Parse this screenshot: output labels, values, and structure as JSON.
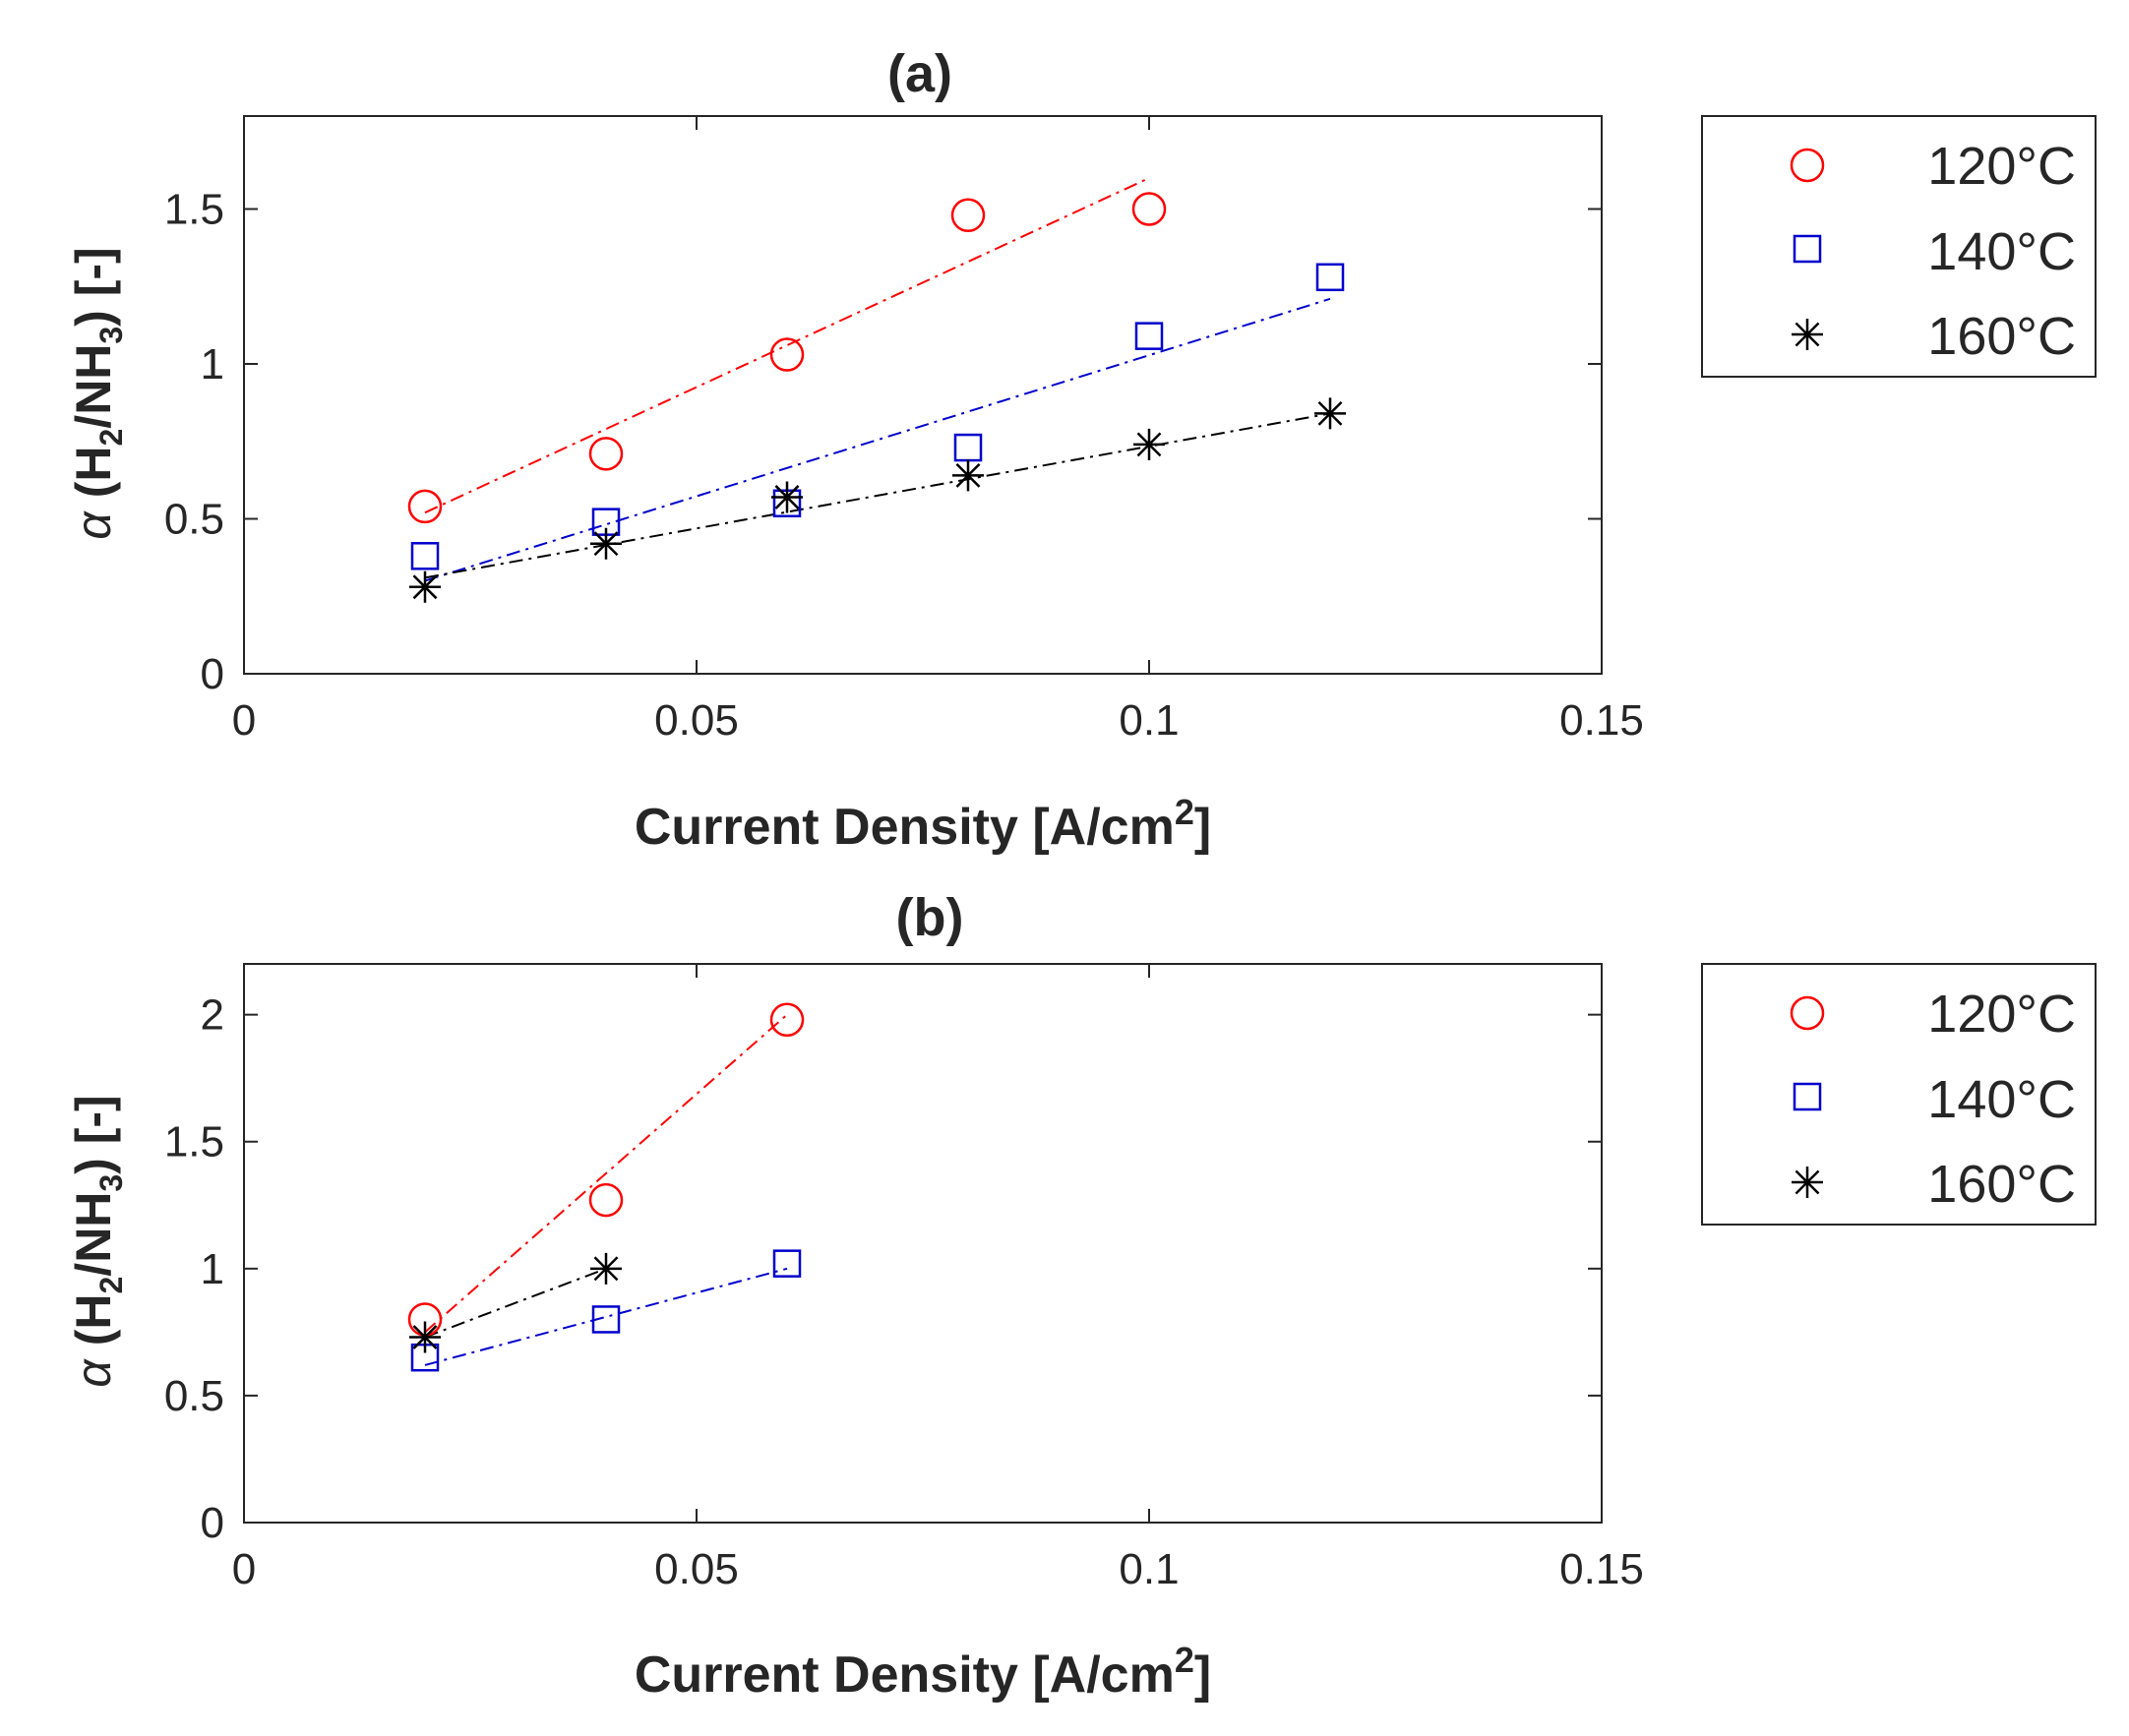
{
  "figure": {
    "colors": {
      "c120": "#ff0000",
      "c140": "#0000cc",
      "c160": "#000000",
      "axis": "#262626"
    }
  },
  "chart_data": [
    {
      "type": "scatter",
      "title": "(a)",
      "xlabel": "Current Density [A/cm2]",
      "xlabel_main": "Current Density [A/cm",
      "xlabel_sup": "2",
      "xlabel_close": "]",
      "ylabel": "α (H2/NH3) [-]",
      "ylabel_alpha": "α",
      "ylabel_a": "(H",
      "ylabel_s1": "2",
      "ylabel_b": "/NH",
      "ylabel_s2": "3",
      "ylabel_c": ") [-]",
      "xlim": [
        0,
        0.15
      ],
      "ylim": [
        0,
        1.8
      ],
      "xticks": [
        0,
        0.05,
        0.1,
        0.15
      ],
      "xtick_labels": [
        "0",
        "0.05",
        "0.1",
        "0.15"
      ],
      "yticks": [
        0,
        0.5,
        1,
        1.5
      ],
      "ytick_labels": [
        "0",
        "0.5",
        "1",
        "1.5"
      ],
      "legend_position": "outside-right",
      "series": [
        {
          "name": "120°C",
          "marker": "circle",
          "color": "#ff0000",
          "x": [
            0.02,
            0.04,
            0.06,
            0.08,
            0.1
          ],
          "y": [
            0.54,
            0.71,
            1.03,
            1.48,
            1.5
          ],
          "fit": {
            "x": [
              0.02,
              0.1
            ],
            "y": [
              0.52,
              1.6
            ]
          }
        },
        {
          "name": "140°C",
          "marker": "square",
          "color": "#0000cc",
          "x": [
            0.02,
            0.04,
            0.06,
            0.08,
            0.1,
            0.12
          ],
          "y": [
            0.38,
            0.49,
            0.55,
            0.73,
            1.09,
            1.28
          ],
          "fit": {
            "x": [
              0.02,
              0.12
            ],
            "y": [
              0.3,
              1.21
            ]
          }
        },
        {
          "name": "160°C",
          "marker": "asterisk",
          "color": "#000000",
          "x": [
            0.02,
            0.04,
            0.06,
            0.08,
            0.1,
            0.12
          ],
          "y": [
            0.28,
            0.42,
            0.57,
            0.64,
            0.74,
            0.84
          ],
          "fit": {
            "x": [
              0.02,
              0.12
            ],
            "y": [
              0.31,
              0.84
            ]
          }
        }
      ]
    },
    {
      "type": "scatter",
      "title": "(b)",
      "xlabel": "Current Density [A/cm2]",
      "xlabel_main": "Current Density [A/cm",
      "xlabel_sup": "2",
      "xlabel_close": "]",
      "ylabel": "α (H2/NH3) [-]",
      "ylabel_alpha": "α",
      "ylabel_a": "(H",
      "ylabel_s1": "2",
      "ylabel_b": "/NH",
      "ylabel_s2": "3",
      "ylabel_c": ") [-]",
      "xlim": [
        0,
        0.15
      ],
      "ylim": [
        0,
        2.2
      ],
      "xticks": [
        0,
        0.05,
        0.1,
        0.15
      ],
      "xtick_labels": [
        "0",
        "0.05",
        "0.1",
        "0.15"
      ],
      "yticks": [
        0,
        0.5,
        1,
        1.5,
        2
      ],
      "ytick_labels": [
        "0",
        "0.5",
        "1",
        "1.5",
        "2"
      ],
      "legend_position": "outside-right",
      "series": [
        {
          "name": "120°C",
          "marker": "circle",
          "color": "#ff0000",
          "x": [
            0.02,
            0.04,
            0.06
          ],
          "y": [
            0.8,
            1.27,
            1.98
          ],
          "fit": {
            "x": [
              0.02,
              0.06
            ],
            "y": [
              0.75,
              2.0
            ]
          }
        },
        {
          "name": "140°C",
          "marker": "square",
          "color": "#0000cc",
          "x": [
            0.02,
            0.04,
            0.06
          ],
          "y": [
            0.65,
            0.8,
            1.02
          ],
          "fit": {
            "x": [
              0.02,
              0.06
            ],
            "y": [
              0.62,
              1.0
            ]
          }
        },
        {
          "name": "160°C",
          "marker": "asterisk",
          "color": "#000000",
          "x": [
            0.02,
            0.04
          ],
          "y": [
            0.73,
            1.0
          ],
          "fit": {
            "x": [
              0.02,
              0.04
            ],
            "y": [
              0.73,
              1.0
            ]
          }
        }
      ]
    }
  ]
}
